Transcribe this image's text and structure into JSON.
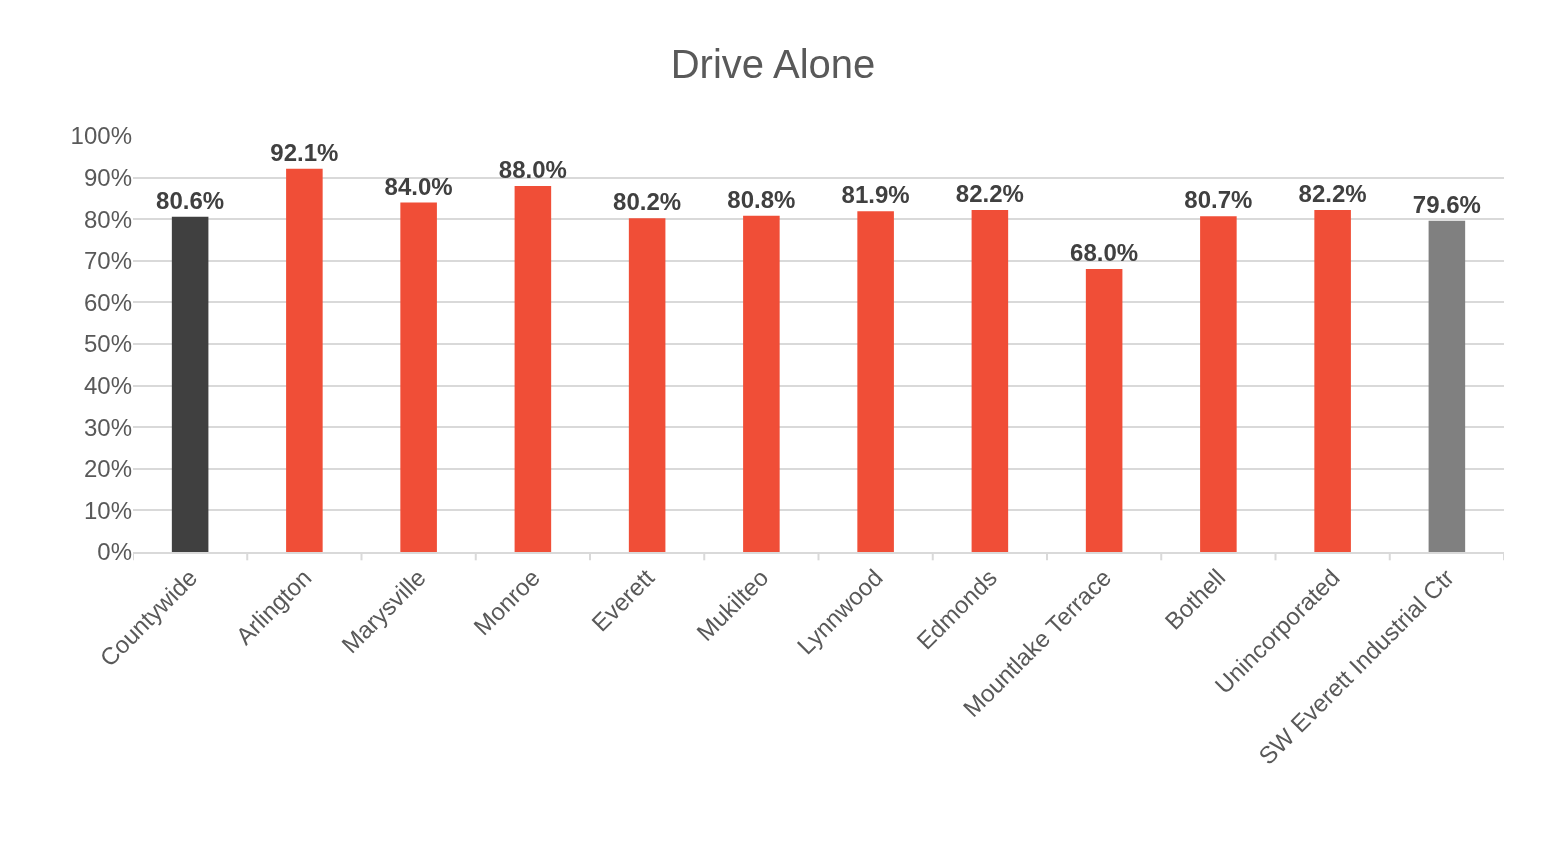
{
  "chart_data": {
    "type": "bar",
    "title": "Drive Alone",
    "categories": [
      "Countywide",
      "Arlington",
      "Marysville",
      "Monroe",
      "Everett",
      "Mukilteo",
      "Lynnwood",
      "Edmonds",
      "Mountlake Terrace",
      "Bothell",
      "Unincorporated",
      "SW Everett Industrial Ctr"
    ],
    "values": [
      80.6,
      92.1,
      84.0,
      88.0,
      80.2,
      80.8,
      81.9,
      82.2,
      68.0,
      80.7,
      82.2,
      79.6
    ],
    "value_labels": [
      "80.6%",
      "92.1%",
      "84.0%",
      "88.0%",
      "80.2%",
      "80.8%",
      "81.9%",
      "82.2%",
      "68.0%",
      "80.7%",
      "82.2%",
      "79.6%"
    ],
    "colors": [
      "#404040",
      "#f04e37",
      "#f04e37",
      "#f04e37",
      "#f04e37",
      "#f04e37",
      "#f04e37",
      "#f04e37",
      "#f04e37",
      "#f04e37",
      "#f04e37",
      "#808080"
    ],
    "ylim": [
      0,
      100
    ],
    "yticks": [
      {
        "value": 0,
        "label": "0%"
      },
      {
        "value": 10,
        "label": "10%"
      },
      {
        "value": 20,
        "label": "20%"
      },
      {
        "value": 30,
        "label": "30%"
      },
      {
        "value": 40,
        "label": "40%"
      },
      {
        "value": 50,
        "label": "50%"
      },
      {
        "value": 60,
        "label": "60%"
      },
      {
        "value": 70,
        "label": "70%"
      },
      {
        "value": 80,
        "label": "80%"
      },
      {
        "value": 90,
        "label": "90%"
      },
      {
        "value": 100,
        "label": "100%"
      }
    ],
    "grid": "y"
  }
}
